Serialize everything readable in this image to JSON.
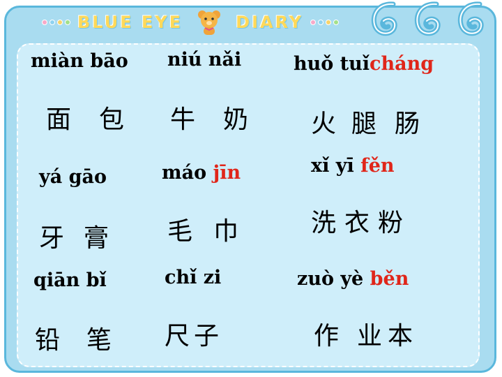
{
  "header": {
    "title_left": "BLUE  EYE",
    "title_right": "DIARY",
    "bear_icon": "bear-icon",
    "curl_icon": "curl-decoration-icon"
  },
  "colors": {
    "frame": "#a9dcf0",
    "panel": "#cfeefa",
    "highlight": "#e0261a"
  },
  "words": [
    {
      "pinyin": "miàn bāo",
      "pinyin_red": "",
      "hanzi": [
        "面",
        "包"
      ]
    },
    {
      "pinyin": "niú  nǎi",
      "pinyin_red": "",
      "hanzi": [
        "牛",
        "奶"
      ]
    },
    {
      "pinyin": "huǒ tuǐ",
      "pinyin_red": "cháng",
      "hanzi": [
        "火",
        "腿",
        "肠"
      ]
    },
    {
      "pinyin": "yá  gāo",
      "pinyin_red": "",
      "hanzi": [
        "牙",
        "膏"
      ]
    },
    {
      "pinyin": "máo ",
      "pinyin_red": "jīn",
      "hanzi": [
        "毛",
        "巾"
      ]
    },
    {
      "pinyin": "xǐ  yī ",
      "pinyin_red": "fěn",
      "hanzi": [
        "洗",
        "衣",
        "粉"
      ]
    },
    {
      "pinyin": "qiān bǐ",
      "pinyin_red": "",
      "hanzi": [
        "铅",
        "笔"
      ]
    },
    {
      "pinyin": "chǐ zi",
      "pinyin_red": "",
      "hanzi": [
        "尺",
        "子"
      ]
    },
    {
      "pinyin": "zuò  yè  ",
      "pinyin_red": "běn",
      "hanzi": [
        "作",
        "业",
        "本"
      ]
    }
  ]
}
